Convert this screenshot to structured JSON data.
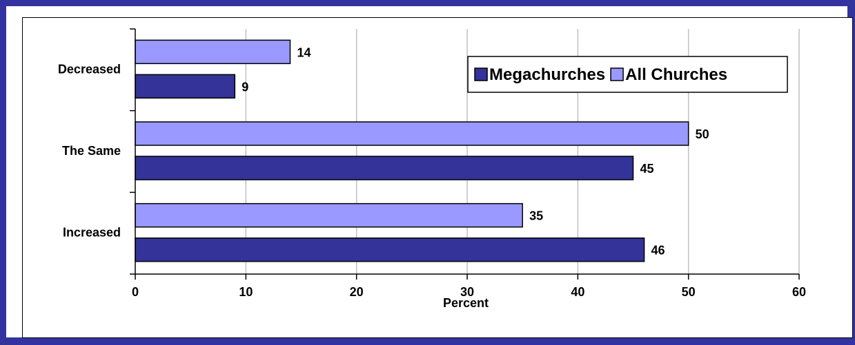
{
  "chart_data": {
    "type": "bar",
    "orientation": "horizontal",
    "categories": [
      "Decreased",
      "The Same",
      "Increased"
    ],
    "series": [
      {
        "name": "All Churches",
        "values": [
          14,
          50,
          35
        ],
        "color": "#9999ff"
      },
      {
        "name": "Megachurches",
        "values": [
          9,
          45,
          46
        ],
        "color": "#333399"
      }
    ],
    "legend_order": [
      "Megachurches",
      "All Churches"
    ],
    "legend_position": "top-right",
    "xlabel": "Percent",
    "ylabel": "",
    "xlim": [
      0,
      60
    ],
    "xticks": [
      0,
      10,
      20,
      30,
      40,
      50,
      60
    ],
    "grid": true
  }
}
